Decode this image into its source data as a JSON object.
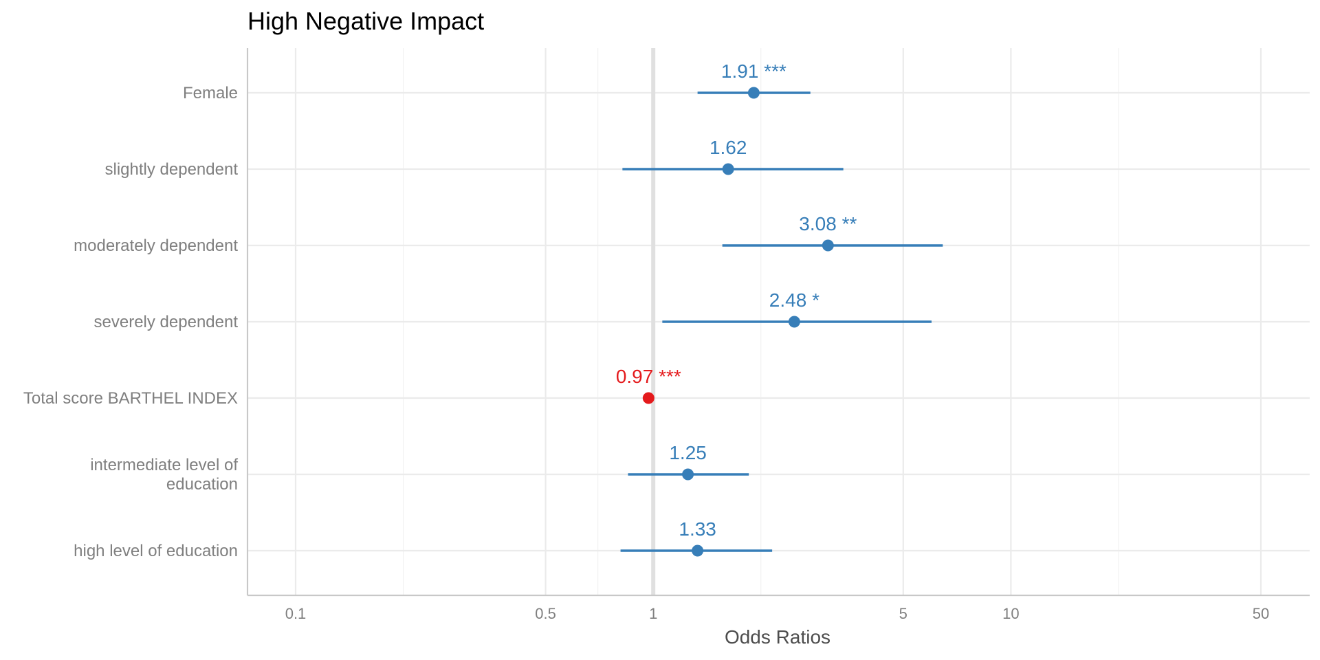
{
  "chart_data": {
    "type": "forest",
    "title": "High Negative Impact",
    "xlabel": "Odds Ratios",
    "x_scale": "log",
    "xlim": [
      0.08,
      63
    ],
    "x_ticks": [
      {
        "value": 0.1,
        "label": "0.1"
      },
      {
        "value": 0.5,
        "label": "0.5"
      },
      {
        "value": 1,
        "label": "1"
      },
      {
        "value": 5,
        "label": "5"
      },
      {
        "value": 10,
        "label": "10"
      },
      {
        "value": 50,
        "label": "50"
      }
    ],
    "minor_grid": [
      0.2,
      0.7,
      2,
      20
    ],
    "reference_line": 1,
    "grid": true,
    "colors": {
      "positive": "#377eb8",
      "negative": "#e41a1c"
    },
    "rows": [
      {
        "label": [
          "Female"
        ],
        "estimate": 1.91,
        "ci_low": 1.33,
        "ci_high": 2.75,
        "annotation": "1.91 ***",
        "direction": "positive"
      },
      {
        "label": [
          "slightly dependent"
        ],
        "estimate": 1.62,
        "ci_low": 0.82,
        "ci_high": 3.4,
        "annotation": "1.62",
        "direction": "positive"
      },
      {
        "label": [
          "moderately dependent"
        ],
        "estimate": 3.08,
        "ci_low": 1.56,
        "ci_high": 6.45,
        "annotation": "3.08 **",
        "direction": "positive"
      },
      {
        "label": [
          "severely dependent"
        ],
        "estimate": 2.48,
        "ci_low": 1.06,
        "ci_high": 6.0,
        "annotation": "2.48 *",
        "direction": "positive"
      },
      {
        "label": [
          "Total score BARTHEL INDEX"
        ],
        "estimate": 0.97,
        "ci_low": 0.96,
        "ci_high": 0.98,
        "annotation": "0.97 ***",
        "direction": "negative"
      },
      {
        "label": [
          "intermediate level of",
          "education"
        ],
        "estimate": 1.25,
        "ci_low": 0.85,
        "ci_high": 1.85,
        "annotation": "1.25",
        "direction": "positive"
      },
      {
        "label": [
          "high level of education"
        ],
        "estimate": 1.33,
        "ci_low": 0.81,
        "ci_high": 2.15,
        "annotation": "1.33",
        "direction": "positive"
      }
    ]
  }
}
